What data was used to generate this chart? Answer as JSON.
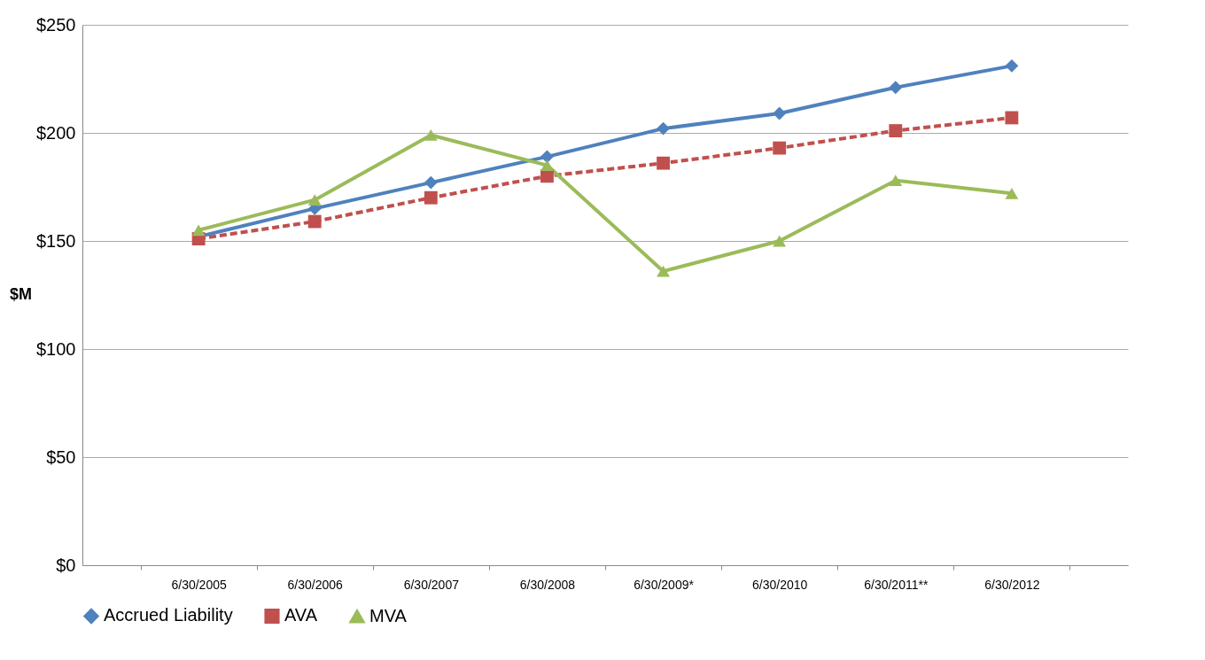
{
  "chart_data": {
    "type": "line",
    "ylabel": "$M",
    "categories": [
      "6/30/2005",
      "6/30/2006",
      "6/30/2007",
      "6/30/2008",
      "6/30/2009*",
      "6/30/2010",
      "6/30/2011**",
      "6/30/2012"
    ],
    "series": [
      {
        "name": "Accrued Liability",
        "color": "#4f81bd",
        "marker": "diamond",
        "line_style": "solid",
        "values": [
          152,
          165,
          177,
          189,
          202,
          209,
          221,
          231
        ]
      },
      {
        "name": "AVA",
        "color": "#c0504d",
        "marker": "square",
        "line_style": "dashed",
        "values": [
          151,
          159,
          170,
          180,
          186,
          193,
          201,
          207
        ]
      },
      {
        "name": "MVA",
        "color": "#9bbb59",
        "marker": "triangle",
        "line_style": "solid",
        "values": [
          155,
          169,
          199,
          185,
          136,
          150,
          178,
          172
        ]
      }
    ],
    "ylim": [
      0,
      250
    ],
    "yticks": [
      {
        "value": 0,
        "label": "$0"
      },
      {
        "value": 50,
        "label": "$50"
      },
      {
        "value": 100,
        "label": "$100"
      },
      {
        "value": 150,
        "label": "$150"
      },
      {
        "value": 200,
        "label": "$200"
      },
      {
        "value": 250,
        "label": "$250"
      }
    ],
    "grid": "y",
    "legend": "bottom"
  }
}
